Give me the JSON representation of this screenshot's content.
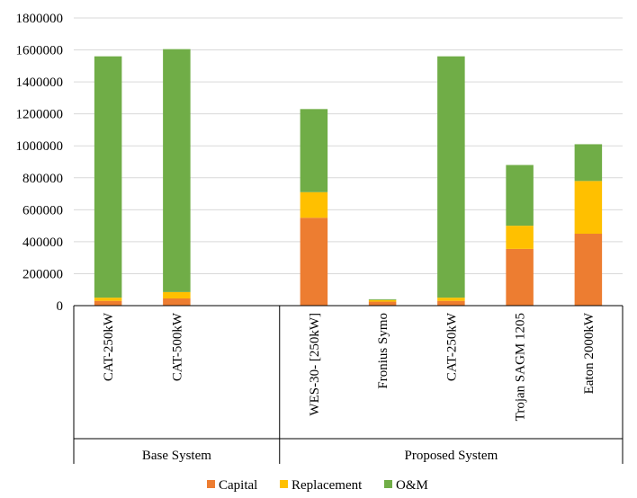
{
  "chart_data": {
    "type": "stacked-bar",
    "groups": [
      {
        "label": "Base System",
        "categories": [
          "CAT-250kW",
          "CAT-500kW"
        ]
      },
      {
        "label": "Proposed System",
        "categories": [
          "WES-30- [250kW]",
          "Fronius Symo",
          "CAT-250kW",
          "Trojan SAGM 1205",
          "Eaton 2000kW"
        ]
      }
    ],
    "categories": [
      "CAT-250kW",
      "CAT-500kW",
      "WES-30- [250kW]",
      "Fronius Symo",
      "CAT-250kW",
      "Trojan SAGM 1205",
      "Eaton 2000kW"
    ],
    "slots": [
      0,
      1,
      3,
      4,
      5,
      6,
      7
    ],
    "slot_count": 8,
    "series": [
      {
        "name": "Capital",
        "color": "#ED7D31",
        "values": [
          30000,
          45000,
          550000,
          25000,
          30000,
          355000,
          450000
        ]
      },
      {
        "name": "Replacement",
        "color": "#FFC000",
        "values": [
          20000,
          40000,
          160000,
          10000,
          20000,
          145000,
          330000
        ]
      },
      {
        "name": "O&M",
        "color": "#70AD47",
        "values": [
          1510000,
          1520000,
          520000,
          5000,
          1510000,
          380000,
          230000
        ]
      }
    ],
    "ylim": [
      0,
      1800000
    ],
    "yticks": [
      "0",
      "200000",
      "400000",
      "600000",
      "800000",
      "1000000",
      "1200000",
      "1400000",
      "1600000",
      "1800000"
    ],
    "grid": true,
    "legend_position": "bottom",
    "gridline_color": "#D9D9D9",
    "axis_color": "#000000"
  }
}
